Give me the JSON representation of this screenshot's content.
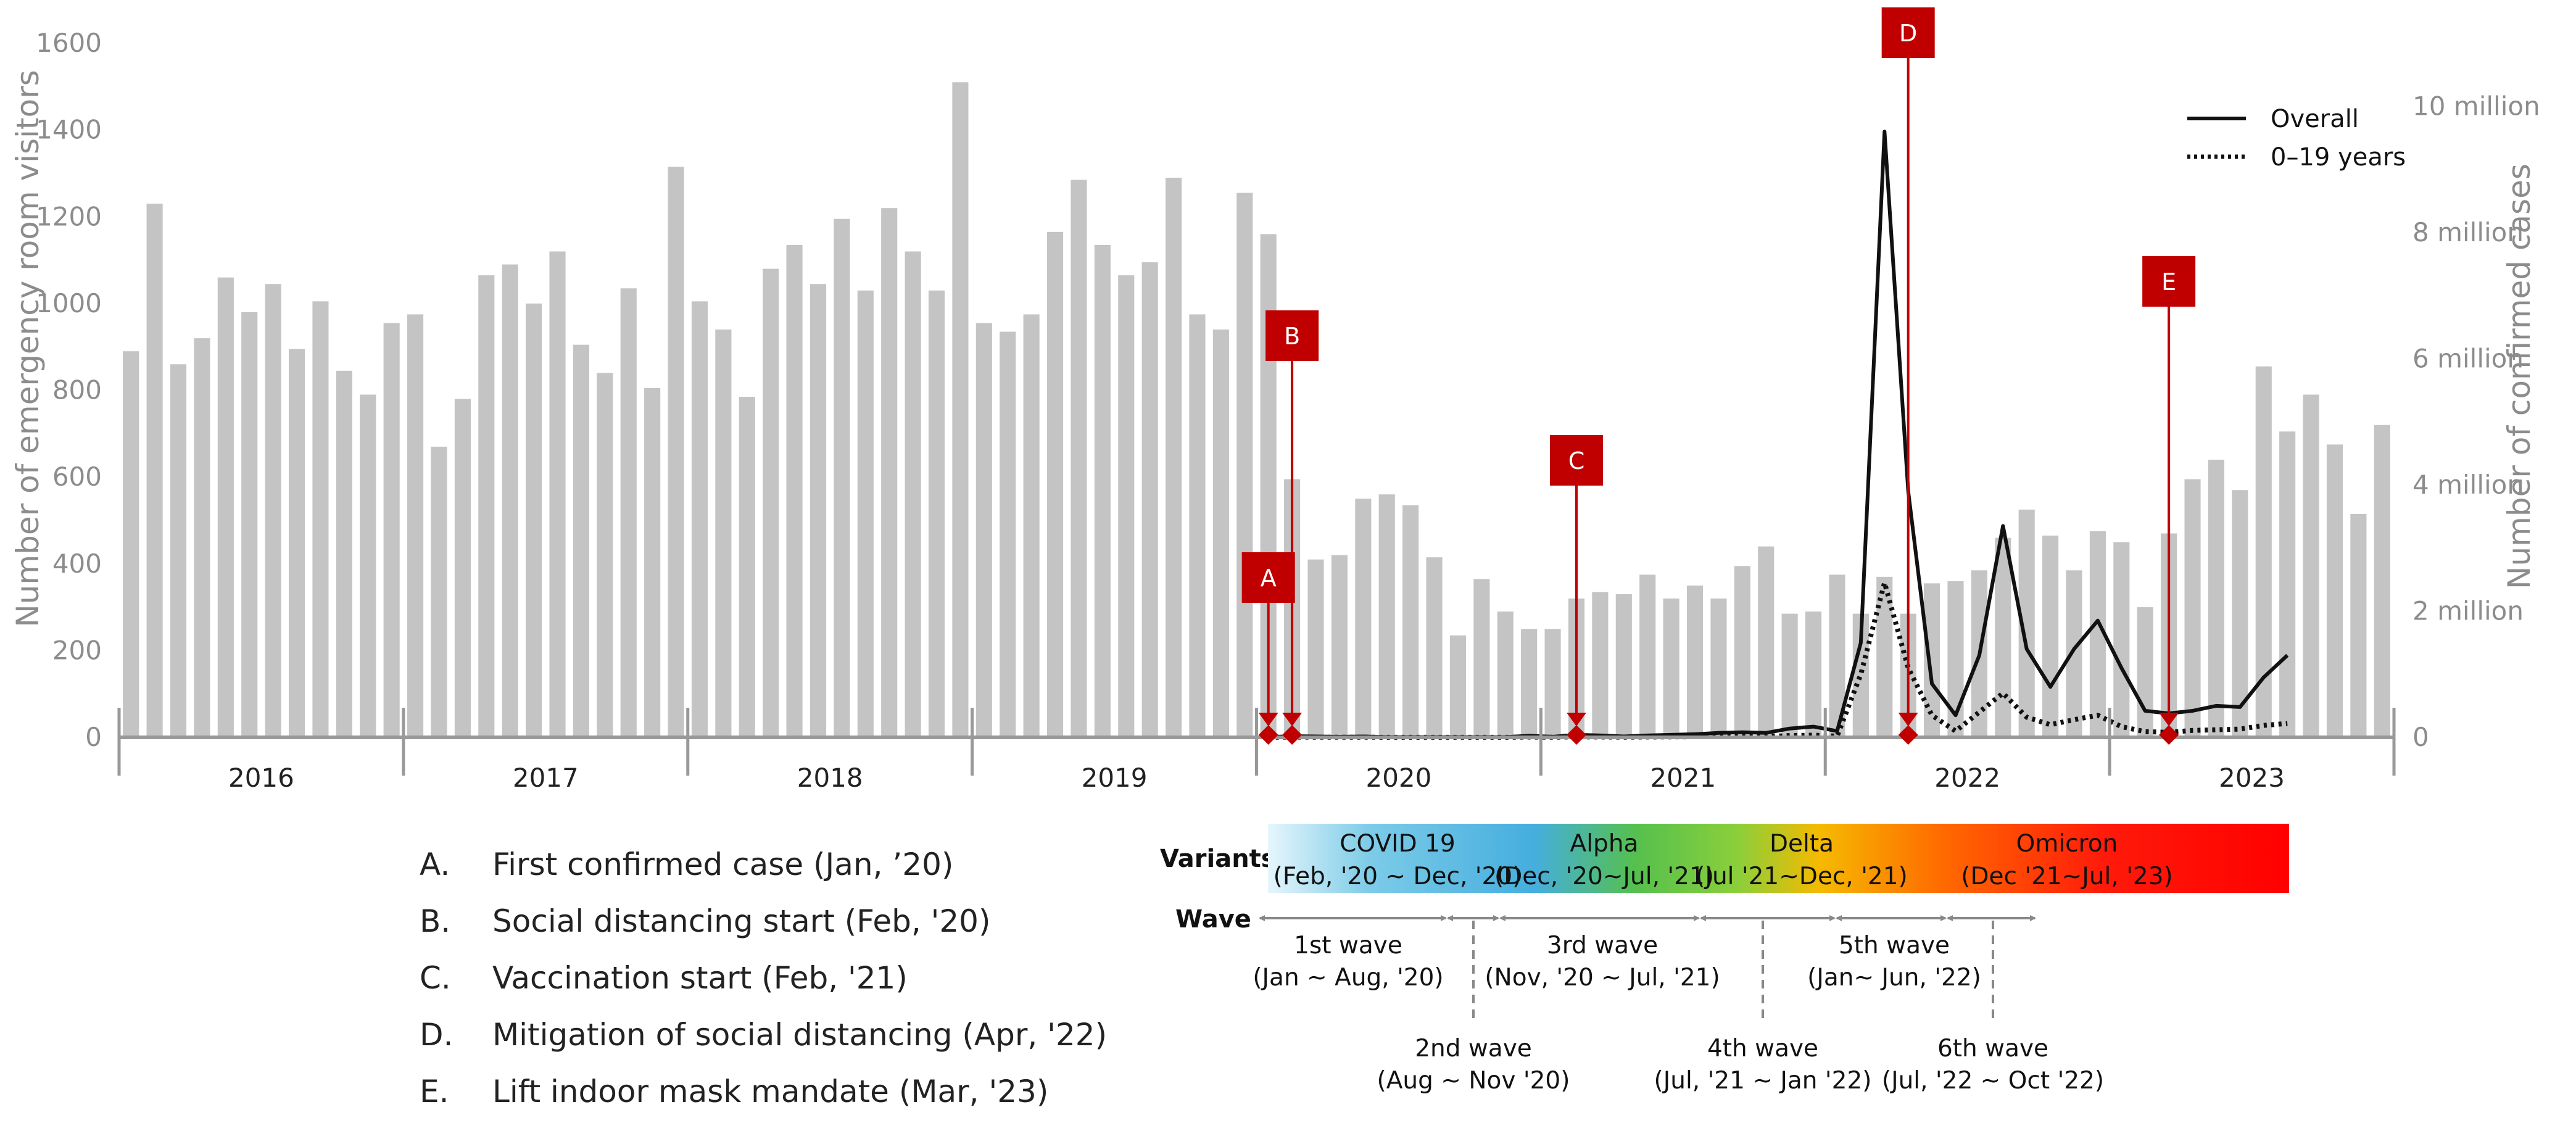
{
  "chart_data": {
    "type": "bar",
    "title": "",
    "ylabel_left": "Number of emergency room visitors",
    "ylabel_right": "Number of confirmed cases",
    "ylim_left": [
      0,
      1600
    ],
    "ylim_right": [
      0,
      11000000
    ],
    "y_ticks_left": [
      "0",
      "200",
      "400",
      "600",
      "800",
      "1000",
      "1200",
      "1400",
      "1600"
    ],
    "y_ticks_right": [
      "0",
      "2 million",
      "4 million",
      "6 million",
      "8 million",
      "10 million"
    ],
    "years": [
      "2016",
      "2017",
      "2018",
      "2019",
      "2020",
      "2021",
      "2022",
      "2023"
    ],
    "bars": {
      "name": "Emergency room visitors (monthly)",
      "values": [
        890,
        1230,
        860,
        920,
        1060,
        980,
        1045,
        895,
        1005,
        845,
        790,
        955,
        975,
        670,
        780,
        1065,
        1090,
        1000,
        1120,
        905,
        840,
        1035,
        805,
        1315,
        1005,
        940,
        785,
        1080,
        1135,
        1045,
        1195,
        1030,
        1220,
        1120,
        1030,
        1510,
        955,
        935,
        975,
        1165,
        1285,
        1135,
        1065,
        1095,
        1290,
        975,
        940,
        1255,
        1160,
        595,
        410,
        420,
        550,
        560,
        535,
        415,
        235,
        365,
        290,
        250,
        250,
        320,
        335,
        330,
        375,
        320,
        350,
        320,
        395,
        440,
        285,
        290,
        375,
        285,
        370,
        285,
        355,
        360,
        385,
        460,
        525,
        465,
        385,
        475,
        450,
        300,
        470,
        595,
        640,
        570,
        855,
        705,
        790,
        675,
        515,
        720
      ]
    },
    "series": [
      {
        "name": "Overall",
        "style": "solid",
        "values": [
          5000,
          20000,
          15000,
          10000,
          15000,
          5000,
          5000,
          5000,
          5000,
          5000,
          5000,
          25000,
          10000,
          40000,
          30000,
          15000,
          30000,
          40000,
          50000,
          70000,
          80000,
          70000,
          140000,
          170000,
          100000,
          1500000,
          9600000,
          3900000,
          850000,
          350000,
          1300000,
          3350000,
          1400000,
          800000,
          1400000,
          1850000,
          1100000,
          420000,
          380000,
          420000,
          500000,
          480000,
          950000,
          1300000
        ]
      },
      {
        "name": "0-19 years",
        "style": "dotted",
        "values": [
          1000,
          4000,
          3000,
          2000,
          3000,
          1000,
          1000,
          1000,
          1000,
          1000,
          1000,
          5000,
          2000,
          8000,
          6000,
          3000,
          6000,
          8000,
          10000,
          14000,
          16000,
          14000,
          28000,
          34000,
          20000,
          1000000,
          2450000,
          1100000,
          350000,
          100000,
          400000,
          700000,
          320000,
          200000,
          280000,
          350000,
          170000,
          90000,
          80000,
          110000,
          120000,
          130000,
          190000,
          220000
        ]
      }
    ],
    "legend": [
      "Overall",
      "0–19 years"
    ],
    "legend_position": "top-right",
    "markers": [
      {
        "letter": "A",
        "month": "2020-01",
        "label": "First confirmed case (Jan, ’20)"
      },
      {
        "letter": "B",
        "month": "2020-02",
        "label": "Social distancing start (Feb, '20)"
      },
      {
        "letter": "C",
        "month": "2021-02",
        "label": "Vaccination start (Feb, '21)"
      },
      {
        "letter": "D",
        "month": "2022-04",
        "label": "Mitigation of social distancing (Apr, '22)"
      },
      {
        "letter": "E",
        "month": "2023-03",
        "label": "Lift indoor mask mandate (Mar, '23)"
      }
    ],
    "variants_label": "Variants",
    "variants": [
      {
        "name": "COVID 19",
        "period": "(Feb, '20 ~ Dec, '20)"
      },
      {
        "name": "Alpha",
        "period": "(Dec, '20~Jul, '21)"
      },
      {
        "name": "Delta",
        "period": "(Jul '21~Dec, '21)"
      },
      {
        "name": "Omicron",
        "period": "(Dec '21~Jul, '23)"
      }
    ],
    "wave_label": "Wave",
    "waves": [
      {
        "name": "1st wave",
        "period": "(Jan ~ Aug, '20)"
      },
      {
        "name": "2nd wave",
        "period": "(Aug ~ Nov '20)"
      },
      {
        "name": "3rd wave",
        "period": "(Nov, '20 ~ Jul, '21)"
      },
      {
        "name": "4th wave",
        "period": "(Jul, '21 ~ Jan '22)"
      },
      {
        "name": "5th wave",
        "period": "(Jan~ Jun, '22)"
      },
      {
        "name": "6th wave",
        "period": "(Jul, '22 ~ Oct '22)"
      }
    ]
  }
}
